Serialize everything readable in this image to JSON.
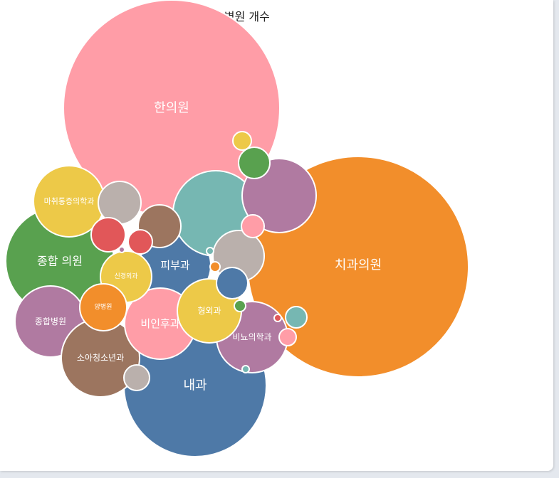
{
  "chart_data": {
    "type": "bubble",
    "title": "진료 과목별 병원 개수",
    "series": [
      {
        "name": "한의원",
        "color": "#ff9da7",
        "label": "한의원"
      },
      {
        "name": "치과의원",
        "color": "#f28e2b",
        "label": "치과의원"
      },
      {
        "name": "내과",
        "color": "#4e79a7",
        "label": "내과"
      },
      {
        "name": "종합 의원",
        "color": "#59a14f",
        "label": "종합 의원"
      },
      {
        "name": "마취통증의학과",
        "color": "#edc948",
        "label": "마취통증의학과"
      },
      {
        "name": "종합병원",
        "color": "#b07aa1",
        "label": "종합병원"
      },
      {
        "name": "소아청소년과",
        "color": "#9c755f",
        "label": "소아청소년과"
      },
      {
        "name": "비뇨의학과",
        "color": "#b07aa1",
        "label": "비뇨의학과"
      },
      {
        "name": "피부과",
        "color": "#4e79a7",
        "label": "피부과"
      },
      {
        "name": "비인후과",
        "color": "#ff9da7",
        "label": "비인후과"
      },
      {
        "name": "정형외과",
        "color": "#edc948",
        "label": "형외과"
      },
      {
        "name": "신경외과",
        "color": "#edc948",
        "label": "신경외과"
      },
      {
        "name": "요양병원",
        "color": "#f28e2b",
        "label": "양병원"
      },
      {
        "name": "b14",
        "color": "#76b7b2",
        "label": ""
      },
      {
        "name": "b15",
        "color": "#b07aa1",
        "label": ""
      },
      {
        "name": "b16",
        "color": "#9c755f",
        "label": ""
      },
      {
        "name": "b17",
        "color": "#bab0ac",
        "label": ""
      },
      {
        "name": "b18",
        "color": "#bab0ac",
        "label": ""
      },
      {
        "name": "b19",
        "color": "#e15759",
        "label": ""
      },
      {
        "name": "b20",
        "color": "#e15759",
        "label": ""
      },
      {
        "name": "b21",
        "color": "#4e79a7",
        "label": ""
      },
      {
        "name": "b22",
        "color": "#59a14f",
        "label": ""
      },
      {
        "name": "b23",
        "color": "#edc948",
        "label": ""
      },
      {
        "name": "b24",
        "color": "#76b7b2",
        "label": ""
      },
      {
        "name": "b25",
        "color": "#ff9da7",
        "label": ""
      },
      {
        "name": "b26",
        "color": "#bab0ac",
        "label": ""
      },
      {
        "name": "b27",
        "color": "#ff9da7",
        "label": ""
      },
      {
        "name": "b28",
        "color": "#59a14f",
        "label": ""
      },
      {
        "name": "b29",
        "color": "#f28e2b",
        "label": ""
      },
      {
        "name": "b30",
        "color": "#76b7b2",
        "label": ""
      },
      {
        "name": "b31",
        "color": "#e15759",
        "label": ""
      },
      {
        "name": "b32",
        "color": "#76b7b2",
        "label": ""
      },
      {
        "name": "b33",
        "color": "#b07aa1",
        "label": ""
      }
    ],
    "legend": "none",
    "grid": false
  }
}
